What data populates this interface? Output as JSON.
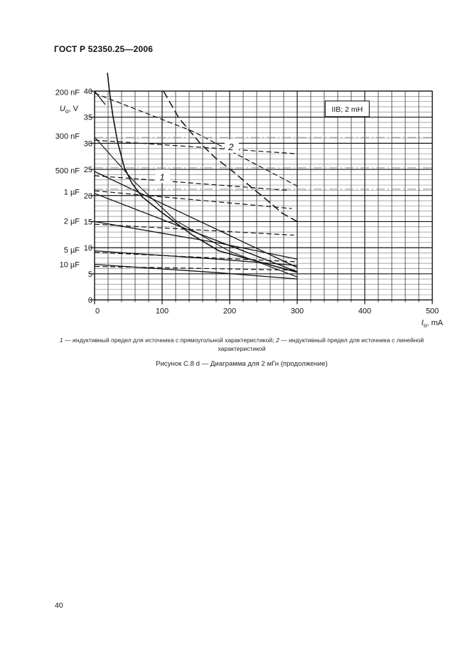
{
  "header": {
    "title": "ГОСТ Р 52350.25—2006"
  },
  "page_number": "40",
  "figure_note": {
    "n1": "1",
    "t1": " — индуктивный предел для источника с прямоугольной характеристикой; ",
    "n2": "2",
    "t2": " — индуктивный предел для источника с линейной характеристикой"
  },
  "figure_caption": "Рисунок С.8 d — Диаграмма для 2 мГн (продолжение)",
  "chart_data": {
    "type": "line",
    "title_box": "IIB; 2 mH",
    "title_box_pos": {
      "I": 374,
      "V": 36.6
    },
    "x_axis": {
      "label_main": "I",
      "label_sub": "o",
      "label_unit": ", mA",
      "min": 0,
      "max": 500,
      "major": 100,
      "minor": 20,
      "tick_labels": [
        "0",
        "100",
        "200",
        "300",
        "400",
        "500"
      ]
    },
    "y_axis": {
      "label_main": "U",
      "label_sub": "o",
      "label_unit": ", V",
      "min": 0,
      "max": 40,
      "major": 5,
      "minor": 1,
      "tick_labels": [
        "0",
        "5",
        "10",
        "15",
        "20",
        "25",
        "30",
        "35",
        "40"
      ]
    },
    "grid": "on",
    "left_labels": [
      {
        "label": "200 nF",
        "v": 39.8
      },
      {
        "label": "300 nF",
        "v": 31.4
      },
      {
        "label": "500 nF",
        "v": 24.8
      },
      {
        "label": "1 µF",
        "v": 20.7
      },
      {
        "label": "2 µF",
        "v": 15.1
      },
      {
        "label": "5 µF",
        "v": 9.6
      },
      {
        "label": "10 µF",
        "v": 6.8
      }
    ],
    "curve_labels": [
      {
        "text": "1",
        "I": 100,
        "V": 23.6
      },
      {
        "text": "2",
        "I": 202,
        "V": 29.4
      }
    ],
    "series": [
      {
        "name": "limit-1-inductive-rectangular",
        "style": "solid",
        "width": 1.6,
        "points": [
          [
            19,
            43.5
          ],
          [
            22,
            40
          ],
          [
            27,
            35.3
          ],
          [
            34,
            30.3
          ],
          [
            44,
            25.4
          ],
          [
            55,
            22.4
          ],
          [
            70,
            19.8
          ],
          [
            97,
            17.0
          ],
          [
            120,
            14.8
          ],
          [
            145,
            12.4
          ],
          [
            184,
            9.4
          ],
          [
            232,
            7.7
          ],
          [
            300,
            5.3
          ]
        ]
      },
      {
        "name": "limit-2-inductive-linear",
        "style": "longdash",
        "width": 1.5,
        "points": [
          [
            102,
            40
          ],
          [
            125,
            34.8
          ],
          [
            155,
            30.2
          ],
          [
            178,
            27.3
          ],
          [
            207,
            24.4
          ],
          [
            230,
            21.8
          ],
          [
            250,
            19.7
          ],
          [
            278,
            16.6
          ],
          [
            300,
            15.0
          ]
        ]
      },
      {
        "name": "cap-200nF-solid",
        "style": "solid",
        "width": 1.3,
        "points": [
          [
            0,
            40
          ],
          [
            16,
            37.4
          ]
        ]
      },
      {
        "name": "cap-200nF-dashed",
        "style": "dashed",
        "width": 1.2,
        "points": [
          [
            0,
            39.6
          ],
          [
            147,
            32.2
          ],
          [
            300,
            21.8
          ]
        ]
      },
      {
        "name": "cap-300nF-solid",
        "style": "solid",
        "width": 1.1,
        "points": [
          [
            0,
            31.2
          ],
          [
            60,
            22.5
          ],
          [
            120,
            15.2
          ],
          [
            200,
            9.3
          ],
          [
            300,
            4.4
          ]
        ]
      },
      {
        "name": "cap-300nF-dashed",
        "style": "dashed",
        "width": 1.2,
        "points": [
          [
            0,
            30.6
          ],
          [
            300,
            28.0
          ]
        ]
      },
      {
        "name": "cap-500nF-solid",
        "style": "solid",
        "width": 1.3,
        "points": [
          [
            0,
            24.6
          ],
          [
            300,
            6.2
          ]
        ]
      },
      {
        "name": "cap-500nF-dashed",
        "style": "dashed",
        "width": 1.2,
        "points": [
          [
            0,
            23.8
          ],
          [
            285,
            21.0
          ]
        ]
      },
      {
        "name": "cap-1uF-solid",
        "style": "solid",
        "width": 1.3,
        "points": [
          [
            0,
            20.4
          ],
          [
            300,
            5.4
          ]
        ]
      },
      {
        "name": "cap-1uF-dashed",
        "style": "dashed",
        "width": 1.2,
        "points": [
          [
            0,
            20.9
          ],
          [
            292,
            17.5
          ]
        ]
      },
      {
        "name": "cap-2uF-solid",
        "style": "solid",
        "width": 1.3,
        "points": [
          [
            0,
            15.0
          ],
          [
            184,
            10.9
          ],
          [
            300,
            7.8
          ]
        ]
      },
      {
        "name": "cap-2uF-dashed",
        "style": "dashed",
        "width": 1.2,
        "points": [
          [
            0,
            14.5
          ],
          [
            295,
            12.4
          ]
        ]
      },
      {
        "name": "cap-5uF-solid",
        "style": "solid",
        "width": 1.3,
        "points": [
          [
            0,
            9.4
          ],
          [
            184,
            7.8
          ],
          [
            300,
            6.6
          ]
        ]
      },
      {
        "name": "cap-5uF-dashed",
        "style": "dashed",
        "width": 1.2,
        "points": [
          [
            0,
            9.1
          ],
          [
            300,
            7.3
          ]
        ]
      },
      {
        "name": "cap-10uF-solid",
        "style": "solid",
        "width": 1.3,
        "points": [
          [
            0,
            6.8
          ],
          [
            184,
            5.2
          ],
          [
            300,
            4.0
          ]
        ]
      },
      {
        "name": "cap-10uF-dashed",
        "style": "dashed",
        "width": 1.2,
        "points": [
          [
            0,
            6.4
          ],
          [
            300,
            5.7
          ]
        ]
      },
      {
        "name": "ref-dashdot-31V",
        "style": "dashdot",
        "width": 1.0,
        "points": [
          [
            0,
            31.1
          ],
          [
            500,
            31.1
          ]
        ]
      },
      {
        "name": "ref-dashdot-25V",
        "style": "dashdot",
        "width": 1.0,
        "points": [
          [
            0,
            25.3
          ],
          [
            500,
            25.3
          ]
        ]
      },
      {
        "name": "ref-dashdot-21V",
        "style": "dashdot",
        "width": 1.0,
        "points": [
          [
            0,
            21.2
          ],
          [
            500,
            21.2
          ]
        ]
      }
    ],
    "colors": {
      "curve": "#111111",
      "dashdot": "#8c8c8c",
      "grid_minor_h": "#8a8a8a",
      "grid_minor_v": "#3f3f3f",
      "grid_major": "#101010",
      "frame": "#000000"
    }
  }
}
